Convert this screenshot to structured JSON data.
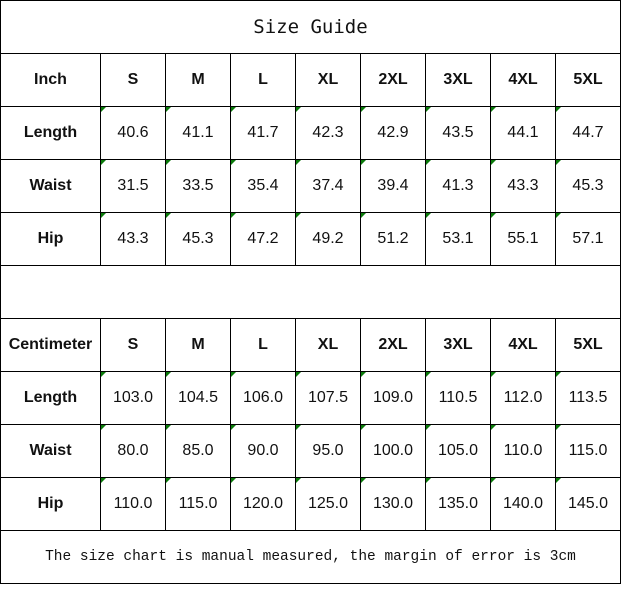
{
  "title": "Size Guide",
  "sizes": [
    "S",
    "M",
    "L",
    "XL",
    "2XL",
    "3XL",
    "4XL",
    "5XL"
  ],
  "inch": {
    "unit_label": "Inch",
    "rows": [
      {
        "label": "Length",
        "values": [
          "40.6",
          "41.1",
          "41.7",
          "42.3",
          "42.9",
          "43.5",
          "44.1",
          "44.7"
        ]
      },
      {
        "label": "Waist",
        "values": [
          "31.5",
          "33.5",
          "35.4",
          "37.4",
          "39.4",
          "41.3",
          "43.3",
          "45.3"
        ]
      },
      {
        "label": "Hip",
        "values": [
          "43.3",
          "45.3",
          "47.2",
          "49.2",
          "51.2",
          "53.1",
          "55.1",
          "57.1"
        ]
      }
    ]
  },
  "centimeter": {
    "unit_label": "Centimeter",
    "rows": [
      {
        "label": "Length",
        "values": [
          "103.0",
          "104.5",
          "106.0",
          "107.5",
          "109.0",
          "110.5",
          "112.0",
          "113.5"
        ]
      },
      {
        "label": "Waist",
        "values": [
          "80.0",
          "85.0",
          "90.0",
          "95.0",
          "100.0",
          "105.0",
          "110.0",
          "115.0"
        ]
      },
      {
        "label": "Hip",
        "values": [
          "110.0",
          "115.0",
          "120.0",
          "125.0",
          "130.0",
          "135.0",
          "140.0",
          "145.0"
        ]
      }
    ]
  },
  "note": "The size chart is manual measured, the margin of error is 3cm",
  "colors": {
    "indicator": "#0a7a0a",
    "border": "#000000"
  }
}
